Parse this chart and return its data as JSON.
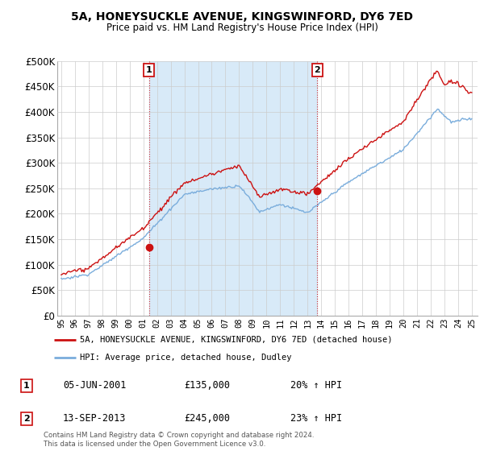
{
  "title": "5A, HONEYSUCKLE AVENUE, KINGSWINFORD, DY6 7ED",
  "subtitle": "Price paid vs. HM Land Registry's House Price Index (HPI)",
  "legend_line1": "5A, HONEYSUCKLE AVENUE, KINGSWINFORD, DY6 7ED (detached house)",
  "legend_line2": "HPI: Average price, detached house, Dudley",
  "annotation1_date": "05-JUN-2001",
  "annotation1_price": "£135,000",
  "annotation1_hpi": "20% ↑ HPI",
  "annotation2_date": "13-SEP-2013",
  "annotation2_price": "£245,000",
  "annotation2_hpi": "23% ↑ HPI",
  "footer": "Contains HM Land Registry data © Crown copyright and database right 2024.\nThis data is licensed under the Open Government Licence v3.0.",
  "sale1_year": 2001.42,
  "sale1_price": 135000,
  "sale2_year": 2013.71,
  "sale2_price": 245000,
  "hpi_color": "#7aaddc",
  "price_color": "#cc1111",
  "annotation_color": "#cc1111",
  "shade_color": "#d8eaf8",
  "ylim": [
    0,
    500000
  ],
  "yticks": [
    0,
    50000,
    100000,
    150000,
    200000,
    250000,
    300000,
    350000,
    400000,
    450000,
    500000
  ],
  "background_color": "#ffffff",
  "grid_color": "#cccccc"
}
